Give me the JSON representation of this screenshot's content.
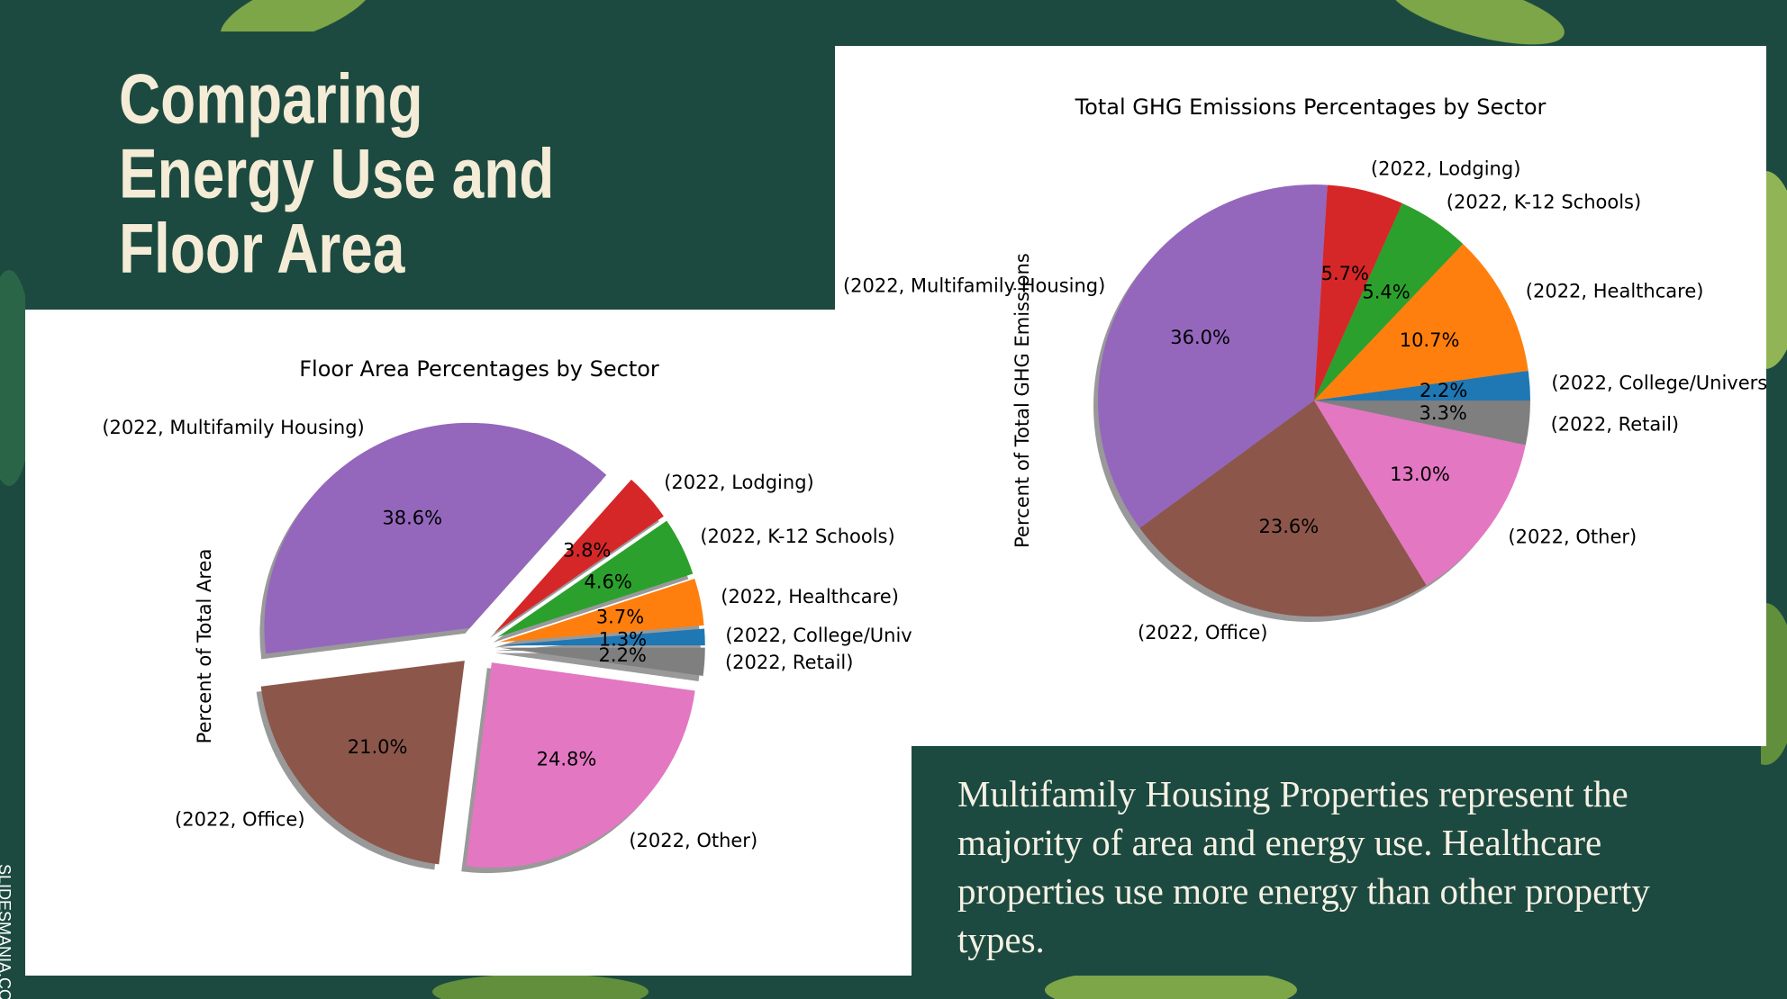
{
  "slide": {
    "title_lines": [
      "Comparing",
      "Energy Use and",
      "Floor Area"
    ],
    "body": "Multifamily Housing Properties represent the majority of area and energy use. Healthcare properties use more energy than other property types.",
    "watermark": "SLIDESMANIA.CO"
  },
  "chart_data": [
    {
      "type": "pie",
      "title": "Floor Area Percentages by Sector",
      "y_label": "Percent of Total Area",
      "categories": [
        "(2022, College/Univ",
        "(2022, Healthcare)",
        "(2022, K-12 Schools)",
        "(2022, Lodging)",
        "(2022, Multifamily Housing)",
        "(2022, Office)",
        "(2022, Other)",
        "(2022, Retail)"
      ],
      "values": [
        1.3,
        3.7,
        4.6,
        3.8,
        38.6,
        21.0,
        24.8,
        2.2
      ],
      "value_labels": [
        "1.3%",
        "3.7%",
        "4.6%",
        "3.8%",
        "38.6%",
        "21.0%",
        "24.8%",
        "2.2%"
      ],
      "colors": [
        "#1f77b4",
        "#ff7f0e",
        "#2ca02c",
        "#d62728",
        "#9467bd",
        "#8c564b",
        "#e377c2",
        "#7f7f7f"
      ],
      "exploded": true,
      "shadow": true
    },
    {
      "type": "pie",
      "title": "Total GHG Emissions Percentages by Sector",
      "y_label": "Percent of Total GHG Emissions",
      "categories": [
        "(2022, College/Univers",
        "(2022, Healthcare)",
        "(2022, K-12 Schools)",
        "(2022, Lodging)",
        "(2022, Multifamily Housing)",
        "(2022, Office)",
        "(2022, Other)",
        "(2022, Retail)"
      ],
      "values": [
        2.2,
        10.7,
        5.4,
        5.7,
        36.0,
        23.6,
        13.0,
        3.3
      ],
      "value_labels": [
        "2.2%",
        "10.7%",
        "5.4%",
        "5.7%",
        "36.0%",
        "23.6%",
        "13.0%",
        "3.3%"
      ],
      "colors": [
        "#1f77b4",
        "#ff7f0e",
        "#2ca02c",
        "#d62728",
        "#9467bd",
        "#8c564b",
        "#e377c2",
        "#7f7f7f"
      ],
      "exploded": false,
      "shadow": true
    }
  ]
}
